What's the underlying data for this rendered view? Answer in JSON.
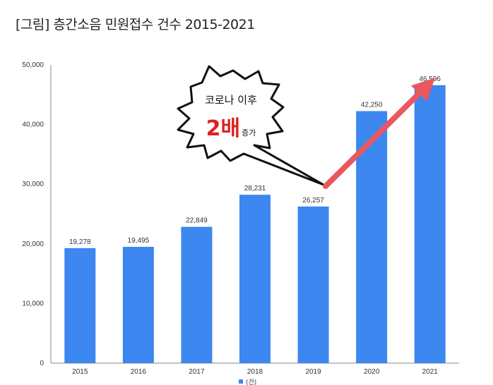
{
  "figure": {
    "title": "[그림] 층간소음 민원접수 건수 2015-2021"
  },
  "callout": {
    "line1": "코로나 이후",
    "line2_big": "2배",
    "line2_small": "증가",
    "big_color": "#e02020"
  },
  "chart_data": {
    "type": "bar",
    "categories": [
      "2015",
      "2016",
      "2017",
      "2018",
      "2019",
      "2020",
      "2021"
    ],
    "series": [
      {
        "name": "(건)",
        "values": [
          19278,
          19495,
          22849,
          28231,
          26257,
          42250,
          46596
        ]
      }
    ],
    "data_labels": [
      "19,278",
      "19,495",
      "22,849",
      "28,231",
      "26,257",
      "42,250",
      "46,596"
    ],
    "y_ticks": [
      0,
      10000,
      20000,
      30000,
      40000,
      50000
    ],
    "y_tick_labels": [
      "0",
      "10,000",
      "20,000",
      "30,000",
      "40,000",
      "50,000"
    ],
    "ylim": [
      0,
      50000
    ],
    "grid": false,
    "legend_position": "bottom",
    "bar_color": "#3c87f0",
    "arrow_color": "#e8585e"
  }
}
